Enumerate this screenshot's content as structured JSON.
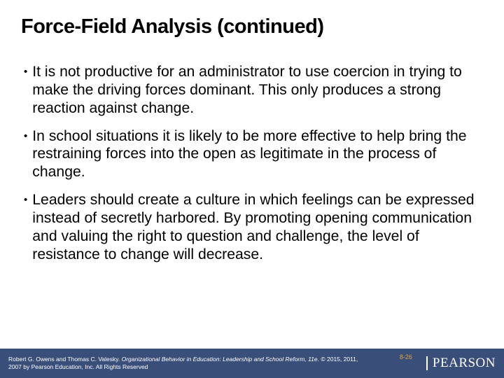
{
  "slide": {
    "title": "Force-Field Analysis (continued)",
    "bullets": [
      "It is not productive for an administrator to use coercion in trying to make the driving forces dominant. This only produces a strong reaction against change.",
      "In school situations it is likely to be more effective to help bring the restraining forces into the open as legitimate in the process of change.",
      "Leaders should create a culture in which feelings can be expressed instead of secretly harbored. By promoting opening communication and valuing the right to question and challenge, the level of resistance to change will decrease."
    ]
  },
  "footer": {
    "authors": "Robert G. Owens and Thomas C. Valesky. ",
    "book_title": "Organizational Behavior in Education: Leadership and School Reform, 11e. ",
    "copyright": "© 2015, 2011, 2007 by Pearson Education, Inc. All Rights Reserved",
    "page_number": "8-26",
    "publisher": "PEARSON"
  },
  "colors": {
    "footer_bg": "#3a4e7a",
    "footer_text": "#ffffff",
    "page_num_color": "#d5a94a",
    "body_text": "#000000",
    "background": "#ffffff"
  }
}
